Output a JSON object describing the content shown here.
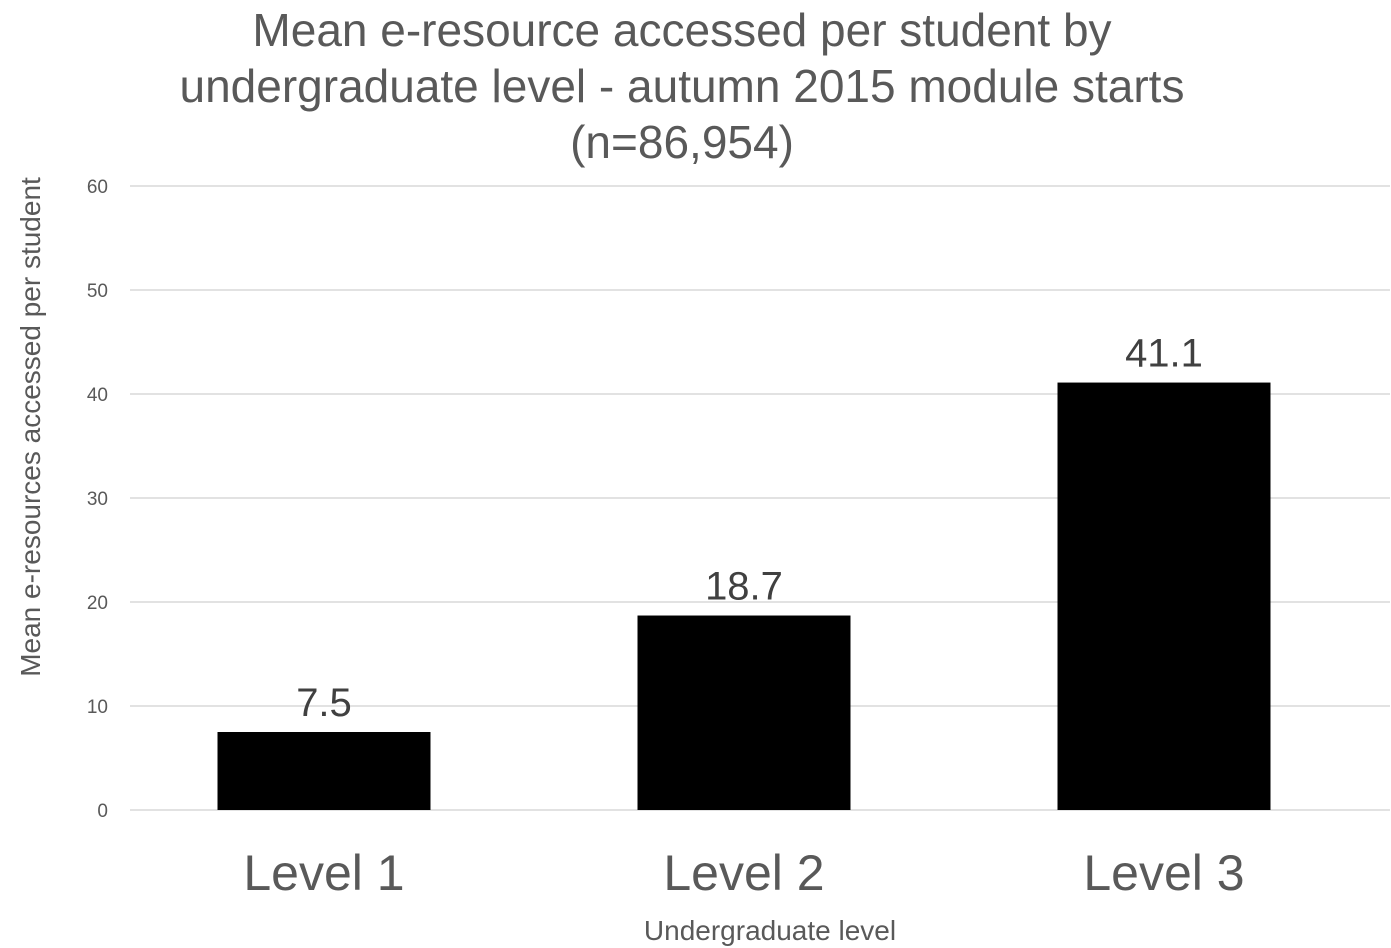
{
  "chart_data": {
    "type": "bar",
    "title": "Mean e-resource accessed per student by undergraduate level -  autumn 2015 module starts (n=86,954)",
    "title_lines": [
      "Mean e-resource accessed per student by",
      "undergraduate level -  autumn 2015 module starts",
      "(n=86,954)"
    ],
    "categories": [
      "Level 1",
      "Level 2",
      "Level 3"
    ],
    "values": [
      7.5,
      18.7,
      41.1
    ],
    "data_labels": [
      "7.5",
      "18.7",
      "41.1"
    ],
    "xlabel": "Undergraduate level",
    "ylabel": "Mean e-resources accessed per student",
    "ylim": [
      0,
      60
    ],
    "yticks": [
      0,
      10,
      20,
      30,
      40,
      50,
      60
    ],
    "grid": true,
    "legend": "none",
    "bar_color": "#000000",
    "text_color": "#595959",
    "grid_color": "#d9d9d9"
  }
}
